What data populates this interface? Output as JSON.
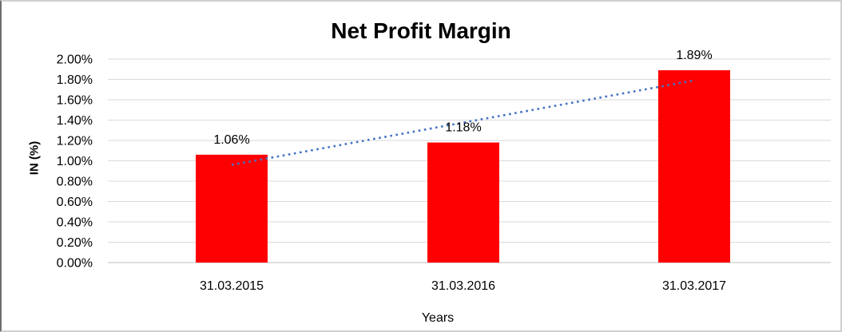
{
  "title": "Net Profit Margin",
  "axes": {
    "x_title": "Years",
    "y_title": "IN (%)"
  },
  "chart_data": {
    "type": "bar",
    "title": "Net Profit Margin",
    "xlabel": "Years",
    "ylabel": "IN (%)",
    "categories": [
      "31.03.2015",
      "31.03.2016",
      "31.03.2017"
    ],
    "values": [
      1.06,
      1.18,
      1.89
    ],
    "data_labels": [
      "1.06%",
      "1.18%",
      "1.89%"
    ],
    "ylim": [
      0,
      2.0
    ],
    "y_tick_step": 0.2,
    "y_tick_labels": [
      "0.00%",
      "0.20%",
      "0.40%",
      "0.60%",
      "0.80%",
      "1.00%",
      "1.20%",
      "1.40%",
      "1.60%",
      "1.80%",
      "2.00%"
    ],
    "grid": true,
    "legend": false,
    "bar_color": "#FF0000",
    "trendline": {
      "type": "linear",
      "style": "dotted",
      "color": "#4472C4",
      "start_value": 0.96,
      "end_value": 1.79
    }
  },
  "colors": {
    "bar": "#FF0000",
    "trendline": "#4472C4",
    "gridline": "#D9D9D9",
    "axis_line": "#BFBFBF",
    "text": "#000000"
  }
}
